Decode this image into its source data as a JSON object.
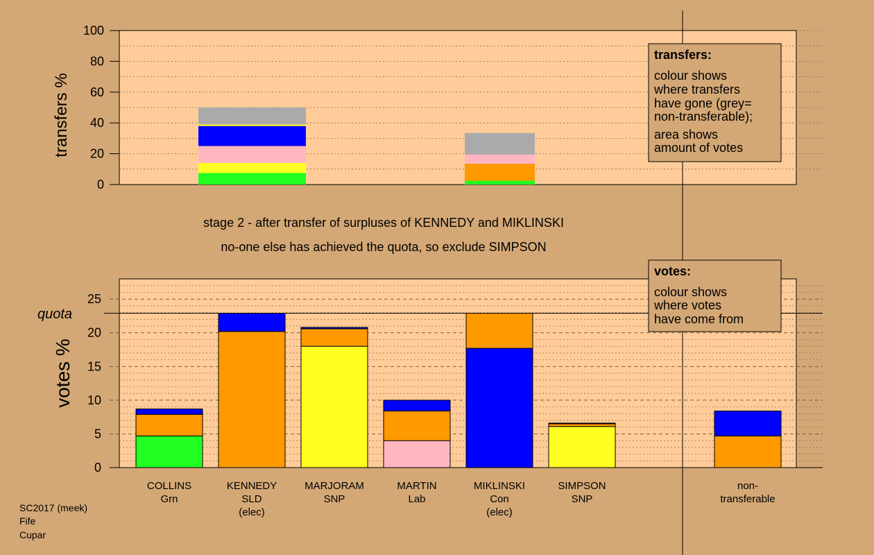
{
  "colors": {
    "page_bg": "#D4A876",
    "plot_bg": "#FFCC99",
    "Grn": "#22FF22",
    "SNP": "#FFFF22",
    "Lab": "#FFB6C1",
    "SLD": "#FF9900",
    "Con": "#0000FF",
    "nontransferable": "#AAAAAA"
  },
  "stage_lines": [
    "stage 2 - after transfer of surpluses of KENNEDY and MIKLINSKI",
    "no-one else has achieved the quota, so exclude SIMPSON"
  ],
  "legend_transfers": {
    "title": "transfers:",
    "lines_a": [
      "colour shows",
      "where transfers",
      "have gone (grey=",
      "non-transferable);"
    ],
    "lines_b": [
      "area shows",
      "amount of votes"
    ]
  },
  "legend_votes": {
    "title": "votes:",
    "lines": [
      "colour shows",
      "where votes",
      "have come from"
    ]
  },
  "footer": [
    "SC2017 (meek)",
    "Fife",
    "Cupar"
  ],
  "chart_data": [
    {
      "type": "bar",
      "stacked": true,
      "ylabel": "transfers %",
      "ylim": [
        0,
        100
      ],
      "yticks": [
        0,
        20,
        40,
        60,
        80,
        100
      ],
      "bars": [
        {
          "source": "KENNEDY",
          "segments": [
            {
              "party": "Grn",
              "value": 7.5
            },
            {
              "party": "SNP",
              "value": 6.5
            },
            {
              "party": "Lab",
              "value": 11
            },
            {
              "party": "Con",
              "value": 13
            },
            {
              "party": "SNP",
              "value": 1
            },
            {
              "party": "nontransferable",
              "value": 11
            }
          ]
        },
        {
          "source": "MIKLINSKI",
          "segments": [
            {
              "party": "Grn",
              "value": 2.5
            },
            {
              "party": "SLD",
              "value": 11
            },
            {
              "party": "Lab",
              "value": 6
            },
            {
              "party": "nontransferable",
              "value": 14
            }
          ]
        }
      ]
    },
    {
      "type": "bar",
      "stacked": true,
      "ylabel": "votes %",
      "ylim": [
        0,
        28
      ],
      "yticks": [
        0,
        5,
        10,
        15,
        20,
        25
      ],
      "quota": {
        "label": "quota",
        "value": 22.9
      },
      "candidates": [
        {
          "name": "COLLINS",
          "party": "Grn",
          "note": "",
          "segments": [
            {
              "party": "Grn",
              "value": 4.7
            },
            {
              "party": "SLD",
              "value": 3.2
            },
            {
              "party": "Con",
              "value": 0.8
            }
          ]
        },
        {
          "name": "KENNEDY",
          "party": "SLD",
          "note": "(elec)",
          "segments": [
            {
              "party": "SLD",
              "value": 20.2
            },
            {
              "party": "Con",
              "value": 2.7
            }
          ]
        },
        {
          "name": "MARJORAM",
          "party": "SNP",
          "note": "",
          "segments": [
            {
              "party": "SNP",
              "value": 18.0
            },
            {
              "party": "SLD",
              "value": 2.6
            },
            {
              "party": "Con",
              "value": 0.2
            }
          ]
        },
        {
          "name": "MARTIN",
          "party": "Lab",
          "note": "",
          "segments": [
            {
              "party": "Lab",
              "value": 4.0
            },
            {
              "party": "SLD",
              "value": 4.4
            },
            {
              "party": "Con",
              "value": 1.6
            }
          ]
        },
        {
          "name": "MIKLINSKI",
          "party": "Con",
          "note": "(elec)",
          "segments": [
            {
              "party": "Con",
              "value": 17.7
            },
            {
              "party": "SLD",
              "value": 5.2
            }
          ]
        },
        {
          "name": "SIMPSON",
          "party": "SNP",
          "note": "",
          "segments": [
            {
              "party": "SNP",
              "value": 6.1
            },
            {
              "party": "SLD",
              "value": 0.4
            },
            {
              "party": "Con",
              "value": 0.1
            }
          ]
        }
      ],
      "nontransferable": {
        "label_line1": "non-",
        "label_line2": "transferable",
        "segments": [
          {
            "party": "SLD",
            "value": 4.7
          },
          {
            "party": "Con",
            "value": 3.7
          }
        ]
      }
    }
  ]
}
